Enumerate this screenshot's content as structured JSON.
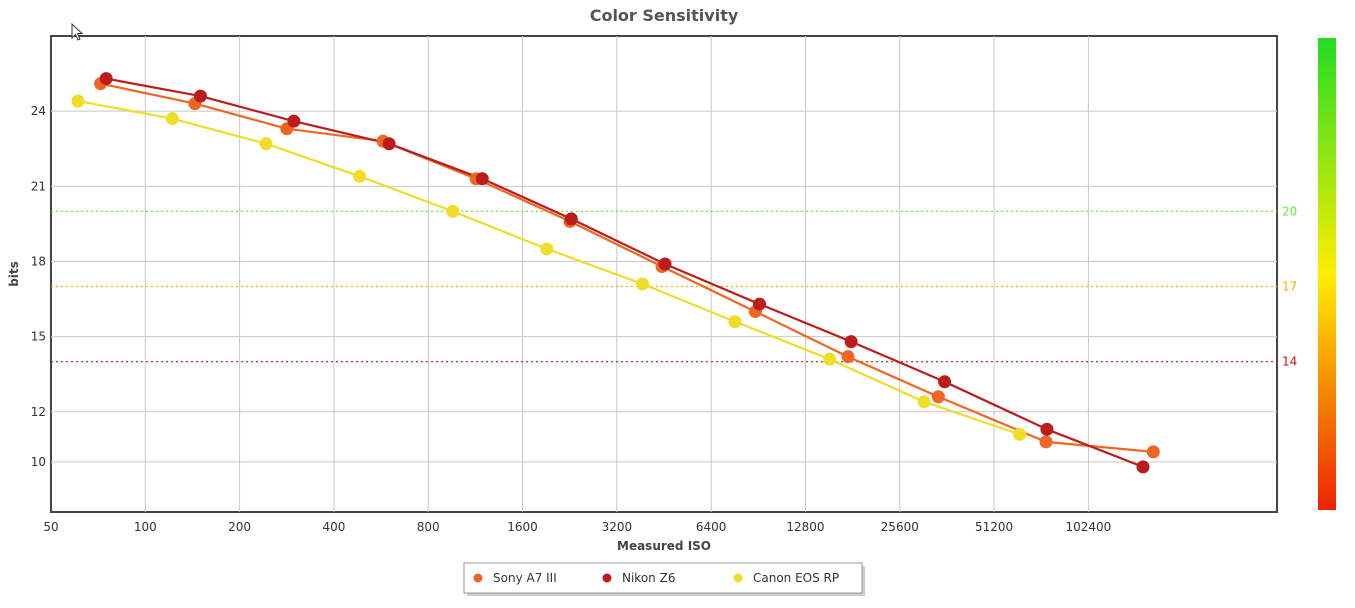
{
  "chart_data": {
    "type": "line",
    "title": "Color Sensitivity",
    "xlabel": "Measured ISO",
    "ylabel": "bits",
    "x_scale": "log2",
    "x_ticks": [
      "50",
      "100",
      "200",
      "400",
      "800",
      "1600",
      "3200",
      "6400",
      "12800",
      "25600",
      "51200",
      "102400"
    ],
    "x_tick_values": [
      50,
      100,
      200,
      400,
      800,
      1600,
      3200,
      6400,
      12800,
      25600,
      51200,
      102400
    ],
    "xlim": [
      50,
      409600
    ],
    "y_ticks": [
      "10",
      "12",
      "15",
      "18",
      "21",
      "24"
    ],
    "y_tick_values": [
      10,
      12,
      15,
      18,
      21,
      24
    ],
    "ylim": [
      8,
      27
    ],
    "grid": true,
    "reference_lines": [
      {
        "value": 20,
        "label": "20",
        "color": "#66ee33"
      },
      {
        "value": 17,
        "label": "17",
        "color": "#ffaa00"
      },
      {
        "value": 14,
        "label": "14",
        "color": "#cc1111"
      }
    ],
    "color_scale": {
      "top": "#22dd22",
      "middle": "#ffee00",
      "bottom": "#ee2200"
    },
    "legend_position": "bottom-center",
    "series": [
      {
        "name": "Sony A7 III",
        "color": "#ee6622",
        "points": [
          {
            "x": 72,
            "y": 25.1
          },
          {
            "x": 144,
            "y": 24.3
          },
          {
            "x": 283,
            "y": 23.3
          },
          {
            "x": 574,
            "y": 22.8
          },
          {
            "x": 1138,
            "y": 21.3
          },
          {
            "x": 2268,
            "y": 19.6
          },
          {
            "x": 4460,
            "y": 17.8
          },
          {
            "x": 8858,
            "y": 16.0
          },
          {
            "x": 17500,
            "y": 14.2
          },
          {
            "x": 34000,
            "y": 12.6
          },
          {
            "x": 75000,
            "y": 10.8
          },
          {
            "x": 165000,
            "y": 10.4
          }
        ]
      },
      {
        "name": "Nikon Z6",
        "color": "#bb1c1c",
        "points": [
          {
            "x": 75,
            "y": 25.3
          },
          {
            "x": 150,
            "y": 24.6
          },
          {
            "x": 298,
            "y": 23.6
          },
          {
            "x": 600,
            "y": 22.7
          },
          {
            "x": 1190,
            "y": 21.3
          },
          {
            "x": 2290,
            "y": 19.7
          },
          {
            "x": 4560,
            "y": 17.9
          },
          {
            "x": 9130,
            "y": 16.3
          },
          {
            "x": 17900,
            "y": 14.8
          },
          {
            "x": 35600,
            "y": 13.2
          },
          {
            "x": 75500,
            "y": 11.3
          },
          {
            "x": 153000,
            "y": 9.8
          }
        ]
      },
      {
        "name": "Canon EOS RP",
        "color": "#f0dd2a",
        "points": [
          {
            "x": 61,
            "y": 24.4
          },
          {
            "x": 122,
            "y": 23.7
          },
          {
            "x": 243,
            "y": 22.7
          },
          {
            "x": 483,
            "y": 21.4
          },
          {
            "x": 959,
            "y": 20.0
          },
          {
            "x": 1913,
            "y": 18.5
          },
          {
            "x": 3866,
            "y": 17.1
          },
          {
            "x": 7620,
            "y": 15.6
          },
          {
            "x": 15300,
            "y": 14.1
          },
          {
            "x": 30600,
            "y": 12.4
          },
          {
            "x": 61800,
            "y": 11.1
          }
        ]
      }
    ]
  }
}
